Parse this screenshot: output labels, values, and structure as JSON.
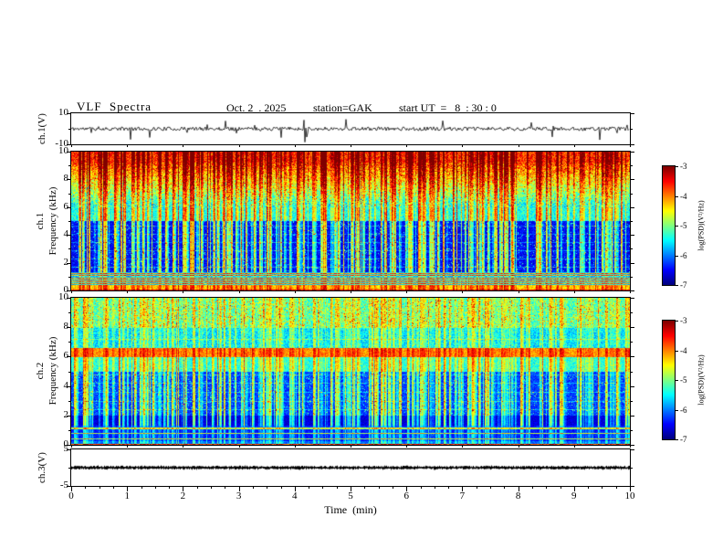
{
  "header": {
    "title": "VLF  Spectra",
    "date": "Oct. 2  . 2025",
    "station": "station=GAK",
    "start_ut": "start UT  =   8  : 30 : 0"
  },
  "xaxis": {
    "label": "Time  (min)",
    "ticks": [
      0,
      1,
      2,
      3,
      4,
      5,
      6,
      7,
      8,
      9,
      10
    ],
    "range": [
      0,
      10
    ]
  },
  "panels": [
    {
      "id": "ch1v",
      "type": "line",
      "ylabel": "ch.1(V)",
      "yticks": [
        10,
        -10
      ],
      "yrange": [
        -10,
        10
      ]
    },
    {
      "id": "ch1spec",
      "type": "heatmap",
      "channel": "ch.1",
      "ylabel": "Frequency (kHz)",
      "yticks": [
        10,
        8,
        6,
        4,
        2,
        0
      ],
      "yrange": [
        0,
        10
      ]
    },
    {
      "id": "ch2spec",
      "type": "heatmap",
      "channel": "ch.2",
      "ylabel": "Frequency (kHz)",
      "yticks": [
        10,
        8,
        6,
        4,
        2,
        0
      ],
      "yrange": [
        0,
        10
      ]
    },
    {
      "id": "ch3v",
      "type": "line",
      "ylabel": "ch.3(V)",
      "yticks": [
        5,
        -5
      ],
      "yrange": [
        -5,
        5
      ]
    }
  ],
  "colorbars": [
    {
      "label": "log(PSD)(V²/Hz)",
      "ticks": [
        -3,
        -4,
        -5,
        -6,
        -7
      ],
      "range": [
        -7,
        -3
      ],
      "colormap": "jet"
    },
    {
      "label": "log(PSD)(V²/Hz)",
      "ticks": [
        -3,
        -4,
        -5,
        -6,
        -7
      ],
      "range": [
        -7,
        -3
      ],
      "colormap": "jet"
    }
  ],
  "chart_data": [
    {
      "type": "line",
      "title": "ch.1(V) raw waveform",
      "xlim": [
        0,
        10
      ],
      "xlabel": "Time (min)",
      "ylim": [
        -10,
        10
      ],
      "description": "broadband noise of ~±1.5 V around 0 V with frequent impulsive sferic spikes reaching about -9 V and +6 V across the whole 10 minute record"
    },
    {
      "type": "heatmap",
      "title": "ch.1 VLF spectrogram",
      "xlim": [
        0,
        10
      ],
      "ylim": [
        0,
        10
      ],
      "zlim": [
        -7,
        -3
      ],
      "colormap": "jet",
      "xlabel": "Time (min)",
      "ylabel": "Frequency (kHz)",
      "features": [
        {
          "band_khz": [
            9.2,
            10.0
          ],
          "psd_log": -3.7,
          "desc": "intense red band at top of panel"
        },
        {
          "band_khz": [
            6.0,
            9.2
          ],
          "psd_log": "-5.4 to -3.8",
          "desc": "gradient from green to red with dense red/yellow vertical sferic streaks"
        },
        {
          "band_khz": [
            5.0,
            6.0
          ],
          "psd_log": -5.4,
          "desc": "green/cyan band"
        },
        {
          "band_khz": [
            1.4,
            5.0
          ],
          "psd_log": -6.5,
          "desc": "dark blue background with bright vertical impulse streaks and faint horizontal harmonic lines near 1.7-4.7 kHz"
        },
        {
          "band_khz": [
            0.45,
            1.4
          ],
          "psd_log": "-5.8 / -4.2",
          "desc": "strong horizontal banding (alternating bright lines)"
        },
        {
          "band_khz": [
            0.0,
            0.45
          ],
          "psd_log": -3.8,
          "desc": "bright yellow/red band along bottom edge"
        }
      ]
    },
    {
      "type": "heatmap",
      "title": "ch.2 VLF spectrogram",
      "xlim": [
        0,
        10
      ],
      "ylim": [
        0,
        10
      ],
      "zlim": [
        -7,
        -3
      ],
      "colormap": "jet",
      "xlabel": "Time (min)",
      "ylabel": "Frequency (kHz)",
      "features": [
        {
          "band_khz": [
            8.0,
            10.0
          ],
          "psd_log": -5.1,
          "desc": "cyan/green speckle with scattered yellow streaks"
        },
        {
          "band_khz": [
            6.0,
            6.6
          ],
          "psd_log": -4.1,
          "desc": "strong continuous yellow/orange horizontal band"
        },
        {
          "band_khz": [
            5.0,
            6.0
          ],
          "psd_log": -5.3,
          "desc": "green/cyan band"
        },
        {
          "band_khz": [
            2.0,
            5.0
          ],
          "psd_log": -6.3,
          "desc": "blue background with cyan speckle, faint horizontal lines and vertical sferic streaks"
        },
        {
          "band_khz": [
            0.3,
            2.0
          ],
          "psd_log": "-6.7 with thin bright lines near 0.45, 0.8, 1.15 kHz",
          "desc": "dark band with narrow bright harmonic lines"
        },
        {
          "band_khz": [
            0.0,
            0.1
          ],
          "psd_log": -3.9,
          "desc": "bright line along bottom edge"
        }
      ]
    },
    {
      "type": "line",
      "title": "ch.3(V) waveform",
      "xlim": [
        0,
        10
      ],
      "xlabel": "Time (min)",
      "ylim": [
        -5,
        5
      ],
      "description": "essentially constant signal near 0 V forming a dense flat dark band for the full record"
    }
  ]
}
